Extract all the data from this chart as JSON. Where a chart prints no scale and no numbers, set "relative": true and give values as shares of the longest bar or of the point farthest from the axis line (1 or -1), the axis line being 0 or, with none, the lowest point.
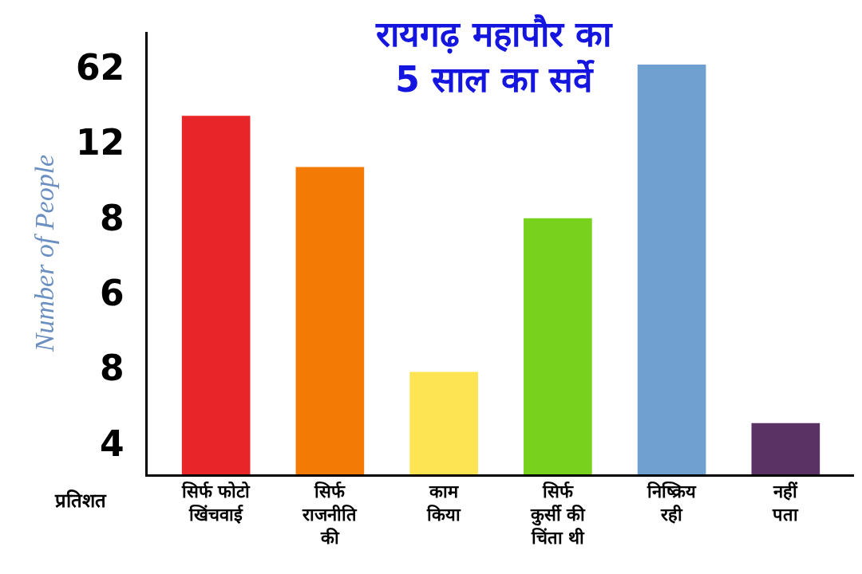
{
  "chart_data": {
    "type": "bar",
    "title": "रायगढ़ महापौर का\n5 साल का सर्वे",
    "ylabel": "Number of People",
    "categories": [
      "सिर्फ फोटो\nखिंचवाई",
      "सिर्फ\nराजनीति\nकी",
      "काम\nकिया",
      "सिर्फ\nकुर्सी की\nचिंता थी",
      "निष्क्रिय\nरही",
      "नहीं\nपता"
    ],
    "values": [
      0.875,
      0.75,
      0.25,
      0.625,
      1,
      0.125
    ],
    "relative": true,
    "colors": [
      "#e8262a",
      "#f27a05",
      "#fde452",
      "#78d11c",
      "#6fa0d0",
      "#5a3263"
    ],
    "annotations": [
      "62",
      "12",
      "8",
      "6",
      "8",
      "4",
      "प्रतिशत"
    ],
    "grid": false
  }
}
